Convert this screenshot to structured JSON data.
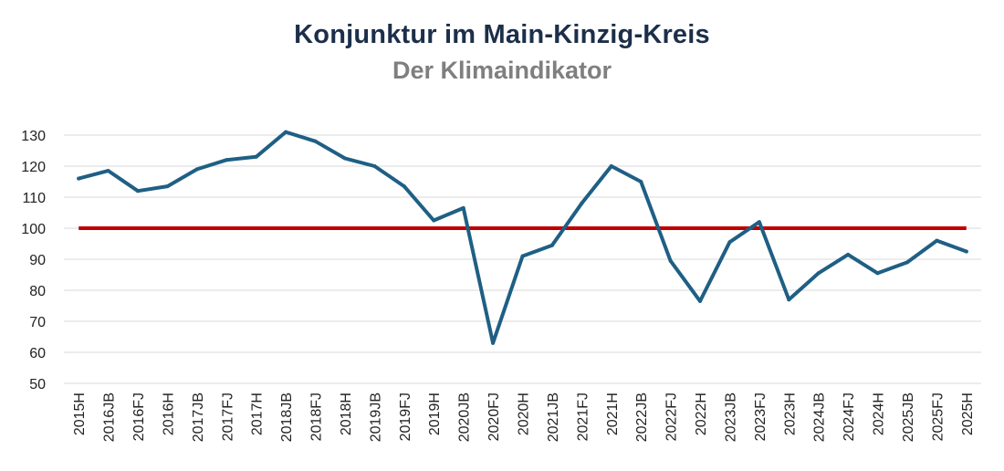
{
  "chart_data": {
    "type": "line",
    "title": "Konjunktur im Main-Kinzig-Kreis",
    "subtitle": "Der Klimaindikator",
    "categories": [
      "2015H",
      "2016JB",
      "2016FJ",
      "2016H",
      "2017JB",
      "2017FJ",
      "2017H",
      "2018JB",
      "2018FJ",
      "2018H",
      "2019JB",
      "2019FJ",
      "2019H",
      "2020JB",
      "2020FJ",
      "2020H",
      "2021JB",
      "2021FJ",
      "2021H",
      "2022JB",
      "2022FJ",
      "2022H",
      "2023JB",
      "2023FJ",
      "2023H",
      "2024JB",
      "2024FJ",
      "2024H",
      "2025JB",
      "2025FJ",
      "2025H"
    ],
    "series": [
      {
        "values": [
          116,
          118.5,
          112,
          113.5,
          119,
          122,
          123,
          131,
          128,
          122.5,
          120,
          113.5,
          102.5,
          106.5,
          63,
          91,
          94.5,
          108,
          120,
          115,
          89.5,
          76.5,
          95.5,
          102,
          77,
          85.5,
          91.5,
          85.5,
          89,
          96,
          92.5
        ],
        "color": "#1f5f84"
      }
    ],
    "reference_line": {
      "value": 100,
      "color": "#c00000"
    },
    "yticks": [
      50,
      60,
      70,
      80,
      90,
      100,
      110,
      120,
      130
    ],
    "ylim": [
      50,
      130
    ],
    "grid": true,
    "gridColor": "#d9d9d9"
  }
}
